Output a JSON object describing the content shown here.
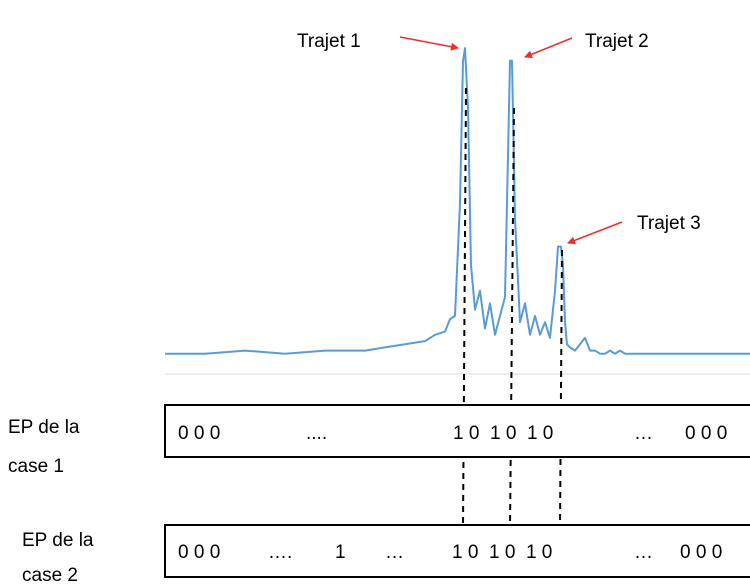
{
  "annotations": {
    "path1": "Trajet 1",
    "path2": "Trajet 2",
    "path3": "Trajet 3"
  },
  "rows": [
    {
      "label_line1": "EP de la",
      "label_line2": "case 1",
      "segments": [
        "0 0 0",
        "....",
        "1 0  1 0  1 0",
        "…",
        "0 0 0"
      ]
    },
    {
      "label_line1": "EP de la",
      "label_line2": "case 2",
      "segments": [
        "0 0 0",
        "….",
        "1",
        "…",
        "1 0  1 0  1 0",
        "…",
        "0 0 0"
      ]
    }
  ],
  "colors": {
    "signal": "#5b9bd5",
    "arrow": "#e8312a",
    "box": "#000000",
    "axis": "#d9d9d9"
  },
  "chart_data": {
    "type": "line",
    "series": [
      {
        "x": [
          0,
          40,
          80,
          120,
          160,
          200,
          220,
          240,
          260,
          270,
          280,
          285,
          290,
          295,
          298,
          300,
          303,
          306,
          310,
          315,
          320,
          325,
          330,
          335,
          340,
          345,
          347,
          350,
          355,
          360,
          365,
          370,
          375,
          380,
          385,
          390,
          393,
          396,
          398,
          400,
          402,
          405,
          410,
          415,
          420,
          425,
          430,
          435,
          440,
          445,
          450,
          455,
          460,
          470,
          480,
          520,
          560,
          585
        ],
        "y": [
          0.02,
          0.02,
          0.03,
          0.02,
          0.03,
          0.03,
          0.04,
          0.05,
          0.06,
          0.08,
          0.09,
          0.13,
          0.14,
          0.5,
          0.95,
          0.99,
          0.8,
          0.3,
          0.16,
          0.22,
          0.1,
          0.18,
          0.08,
          0.14,
          0.2,
          0.95,
          0.95,
          0.45,
          0.12,
          0.18,
          0.08,
          0.14,
          0.08,
          0.12,
          0.07,
          0.22,
          0.36,
          0.36,
          0.3,
          0.12,
          0.05,
          0.04,
          0.03,
          0.05,
          0.07,
          0.03,
          0.03,
          0.02,
          0.02,
          0.03,
          0.02,
          0.03,
          0.02,
          0.02,
          0.02,
          0.02,
          0.02,
          0.02
        ]
      }
    ],
    "peaks": [
      {
        "label": "Trajet 1",
        "x": 300,
        "y": 0.99
      },
      {
        "label": "Trajet 2",
        "x": 347,
        "y": 0.95
      },
      {
        "label": "Trajet 3",
        "x": 396,
        "y": 0.36
      }
    ],
    "grid": false
  }
}
